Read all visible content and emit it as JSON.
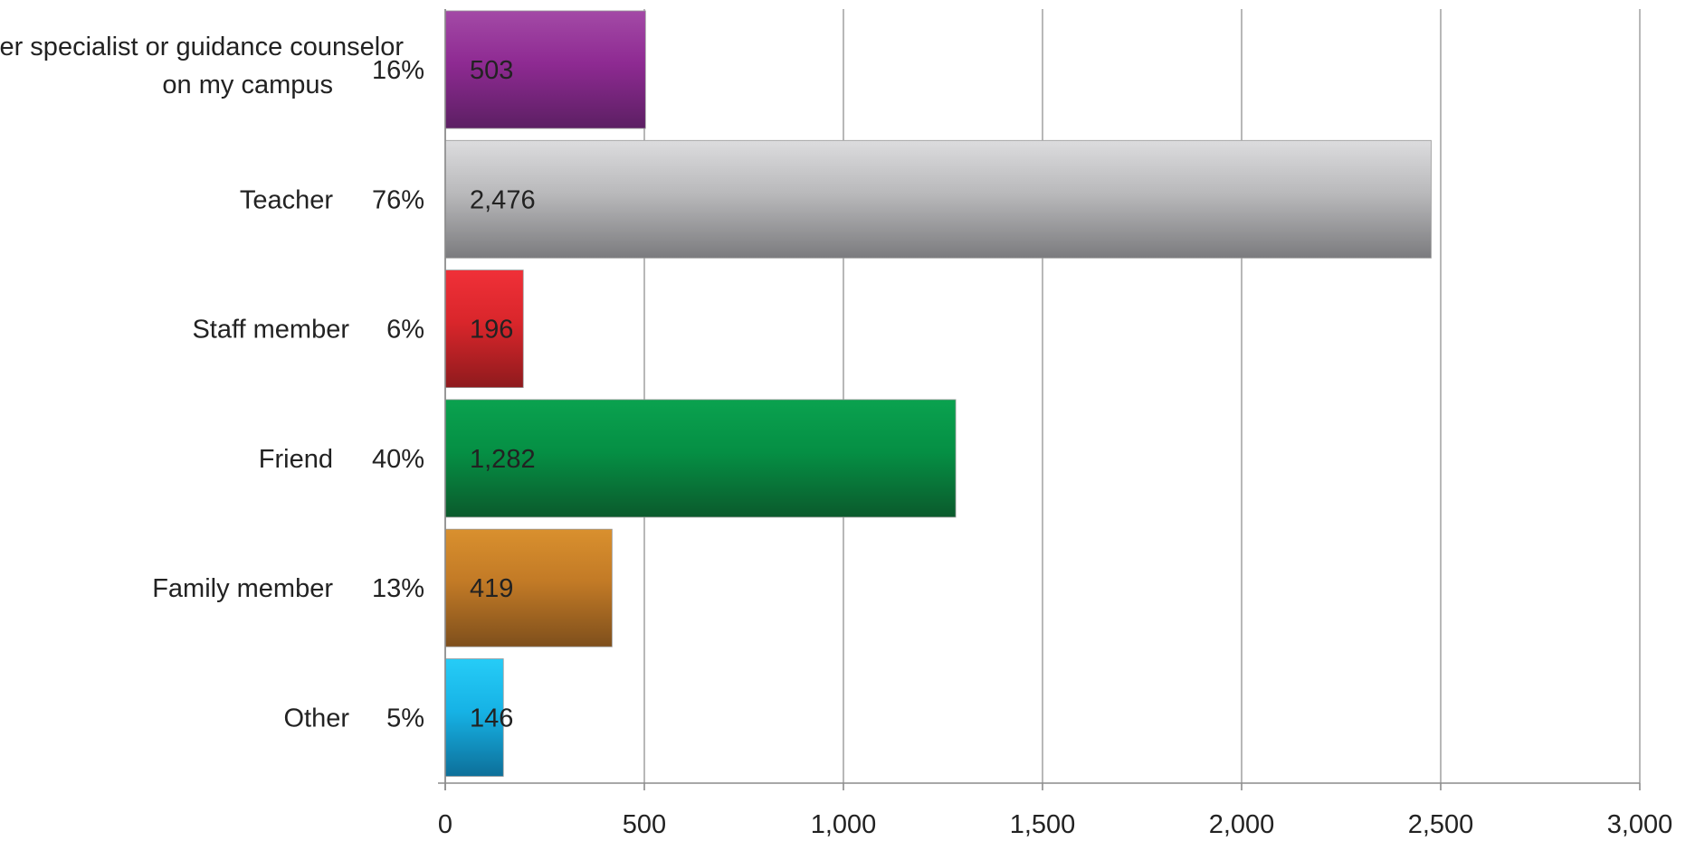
{
  "chart_data": {
    "type": "bar",
    "orientation": "horizontal",
    "categories": [
      "Career specialist or guidance counselor on my campus",
      "Teacher",
      "Staff member",
      "Friend",
      "Family member",
      "Other"
    ],
    "percent_labels": [
      "16%",
      "76%",
      "6%",
      "40%",
      "13%",
      "5%"
    ],
    "values": [
      503,
      2476,
      196,
      1282,
      419,
      146
    ],
    "value_labels": [
      "503",
      "2,476",
      "196",
      "1,282",
      "419",
      "146"
    ],
    "xlim": [
      0,
      3000
    ],
    "x_ticks": [
      0,
      500,
      1000,
      1500,
      2000,
      2500,
      3000
    ],
    "x_tick_labels": [
      "0",
      "500",
      "1,000",
      "1,500",
      "2,000",
      "2,500",
      "3,000"
    ],
    "grid": "vertical",
    "legend": "none",
    "colors": [
      {
        "top": "#a34aa6",
        "mid": "#8e2a92",
        "bottom": "#5c1f63"
      },
      {
        "top": "#dcdcde",
        "mid": "#b9b9bb",
        "bottom": "#7b7b7e"
      },
      {
        "top": "#f03038",
        "mid": "#d9262b",
        "bottom": "#8e1a1d"
      },
      {
        "top": "#0aa24f",
        "mid": "#058f44",
        "bottom": "#0b5a2c"
      },
      {
        "top": "#d9902e",
        "mid": "#c27a26",
        "bottom": "#7e4f1c"
      },
      {
        "top": "#26ccf7",
        "mid": "#16b2e5",
        "bottom": "#0d6f99"
      }
    ]
  }
}
